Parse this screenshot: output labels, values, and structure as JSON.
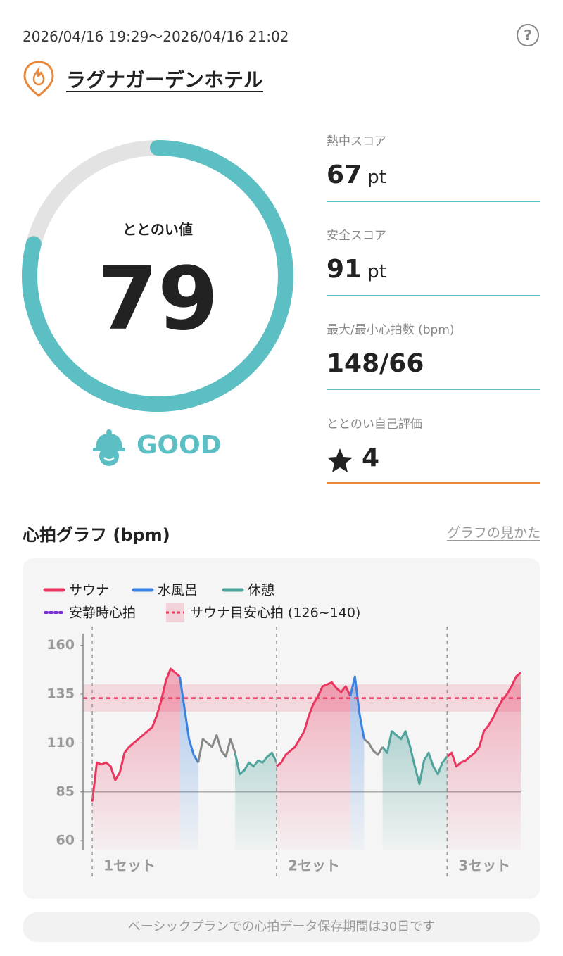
{
  "header": {
    "period": "2026/04/16 19:29〜2026/04/16 21:02",
    "help": "?",
    "place": "ラグナガーデンホテル"
  },
  "score": {
    "label": "ととのい値",
    "value": 79,
    "range": [
      0,
      100
    ],
    "rating": "GOOD"
  },
  "metrics": [
    {
      "label": "熱中スコア",
      "value": 67,
      "unit": "pt"
    },
    {
      "label": "安全スコア",
      "value": 91,
      "unit": "pt"
    },
    {
      "label": "最大/最小心拍数 (bpm)",
      "value": "148/66"
    },
    {
      "label": "ととのい自己評価",
      "value": 4
    }
  ],
  "chart_section": {
    "title": "心拍グラフ (bpm)",
    "link": "グラフの見かた"
  },
  "chart_data": {
    "type": "line",
    "ylim": [
      55,
      166
    ],
    "yticks": [
      60,
      85,
      110,
      135,
      160
    ],
    "xlim": [
      -2,
      93
    ],
    "reference_line": 85,
    "target_band": {
      "name": "サウナ目安心拍 (126~140)",
      "range": [
        126,
        140
      ],
      "color": "#e8365f"
    },
    "target_line": 133,
    "resting": {
      "name": "安静時心拍",
      "color": "#7b2fd6"
    },
    "sets": [
      {
        "label": "1セット",
        "x": 0
      },
      {
        "label": "2セット",
        "x": 40
      },
      {
        "label": "3セット",
        "x": 77
      }
    ],
    "series": [
      {
        "name": "サウナ",
        "color": "#e8365f",
        "area": true,
        "x": [
          0,
          1,
          2,
          3,
          4,
          5,
          6,
          7,
          8,
          9,
          10,
          11,
          12,
          13,
          14,
          15,
          16,
          17,
          18,
          19,
          20,
          40,
          41,
          42,
          43,
          44,
          45,
          46,
          47,
          48,
          49,
          50,
          51,
          52,
          53,
          54,
          55,
          56,
          57,
          77,
          78,
          79,
          80,
          81,
          82,
          83,
          84,
          85,
          86,
          87,
          88,
          89,
          90,
          91,
          92,
          93
        ],
        "values": [
          80,
          100,
          99,
          100,
          98,
          91,
          95,
          105,
          108,
          110,
          112,
          114,
          116,
          118,
          124,
          132,
          142,
          148,
          146,
          144,
          null,
          98,
          100,
          104,
          106,
          108,
          112,
          116,
          124,
          130,
          134,
          139,
          140,
          141,
          138,
          136,
          139,
          134,
          null,
          103,
          105,
          98,
          100,
          101,
          103,
          105,
          108,
          116,
          119,
          123,
          128,
          132,
          135,
          139,
          144,
          146
        ]
      },
      {
        "name": "水風呂",
        "color": "#3b82e0",
        "area": true,
        "x": [
          19,
          20,
          21,
          22,
          23,
          24,
          56,
          57,
          58,
          59
        ],
        "values": [
          144,
          128,
          112,
          104,
          100,
          null,
          134,
          144,
          125,
          112
        ]
      },
      {
        "name": "休憩",
        "color": "#4fa39c",
        "area": true,
        "x": [
          31,
          32,
          33,
          34,
          35,
          36,
          37,
          38,
          39,
          40,
          41,
          63,
          64,
          65,
          66,
          67,
          68,
          69,
          70,
          71,
          72,
          73,
          74,
          75,
          76,
          77
        ],
        "values": [
          105,
          94,
          96,
          100,
          98,
          101,
          100,
          103,
          105,
          100,
          null,
          108,
          105,
          116,
          114,
          112,
          116,
          108,
          98,
          89,
          101,
          105,
          98,
          94,
          100,
          103
        ]
      },
      {
        "color": "#888888",
        "area": false,
        "x": [
          23,
          24,
          25,
          26,
          27,
          28,
          29,
          30,
          31,
          32,
          59,
          60,
          61,
          62,
          63
        ],
        "values": [
          100,
          112,
          110,
          108,
          114,
          106,
          103,
          112,
          105,
          null,
          112,
          110,
          106,
          104,
          108
        ]
      }
    ]
  },
  "footer": "ベーシックプランでの心拍データ保存期間は30日です"
}
